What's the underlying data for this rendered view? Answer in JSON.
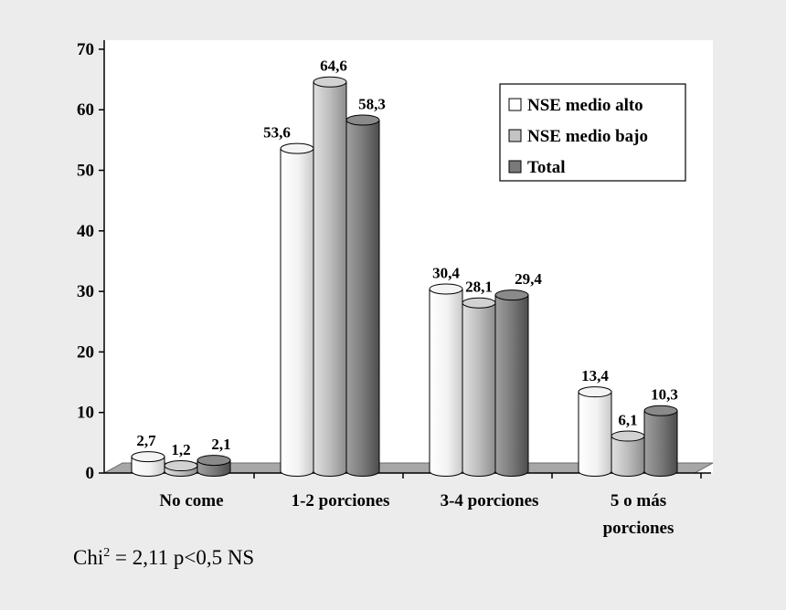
{
  "chart_data": {
    "type": "bar",
    "categories": [
      "No come",
      "1-2 porciones",
      "3-4 porciones",
      "5 o más porciones"
    ],
    "category_lines": [
      [
        "No come"
      ],
      [
        "1-2 porciones"
      ],
      [
        "3-4 porciones"
      ],
      [
        "5 o más",
        "porciones"
      ]
    ],
    "series": [
      {
        "name": "NSE medio alto",
        "values": [
          2.7,
          53.6,
          30.4,
          13.4
        ],
        "labels": [
          "2,7",
          "53,6",
          "30,4",
          "13,4"
        ],
        "color": "#ffffff"
      },
      {
        "name": "NSE medio bajo",
        "values": [
          1.2,
          64.6,
          28.1,
          6.1
        ],
        "labels": [
          "1,2",
          "64,6",
          "28,1",
          "6,1"
        ],
        "color": "#c4c4c4"
      },
      {
        "name": "Total",
        "values": [
          2.1,
          58.3,
          29.4,
          10.3
        ],
        "labels": [
          "2,1",
          "58,3",
          "29,4",
          "10,3"
        ],
        "color": "#7a7a7a"
      }
    ],
    "ylim": [
      0,
      70
    ],
    "yticks": [
      0,
      10,
      20,
      30,
      40,
      50,
      60,
      70
    ],
    "grid": false,
    "legend_position": "top-right",
    "title": "",
    "xlabel": "",
    "ylabel": ""
  },
  "footnote": {
    "prefix": "Chi",
    "superscript": "2",
    "rest": " = 2,11  p<0,5 NS"
  }
}
